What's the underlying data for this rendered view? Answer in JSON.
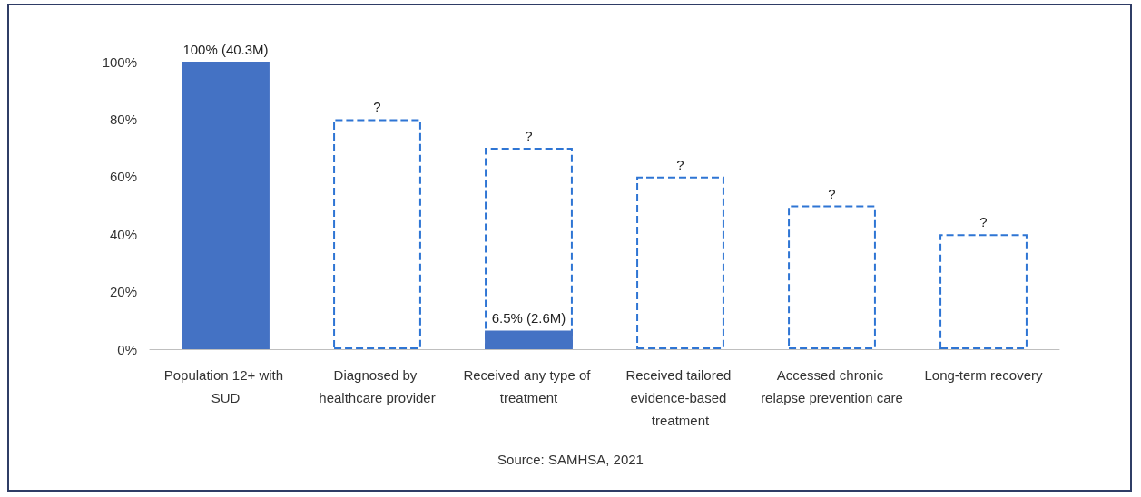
{
  "chart_data": {
    "type": "bar",
    "categories": [
      "Population 12+ with SUD",
      "Diagnosed by healthcare provider",
      "Received any type of treatment",
      "Received tailored evidence-based treatment",
      "Accessed chronic relapse prevention care",
      "Long-term recovery"
    ],
    "series": [
      {
        "color": "#4472c4",
        "values": [
          100,
          null,
          6.5,
          null,
          null,
          null
        ],
        "value_labels": [
          "100% (40.3M)",
          null,
          "6.5% (2.6M)",
          null,
          null,
          null
        ]
      },
      {
        "color": "#2e75d4",
        "line_style": "dashed",
        "values": [
          null,
          80,
          70,
          60,
          50,
          40
        ],
        "value_labels": [
          null,
          "?",
          "?",
          "?",
          "?",
          "?"
        ]
      }
    ],
    "ylim": [
      0,
      100
    ],
    "yticks": [
      {
        "value": 0,
        "label": "0%"
      },
      {
        "value": 20,
        "label": "20%"
      },
      {
        "value": 40,
        "label": "40%"
      },
      {
        "value": 60,
        "label": "60%"
      },
      {
        "value": 80,
        "label": "80%"
      },
      {
        "value": 100,
        "label": "100%"
      }
    ],
    "grid": false,
    "annotations": [
      "Source: SAMHSA, 2021"
    ]
  }
}
